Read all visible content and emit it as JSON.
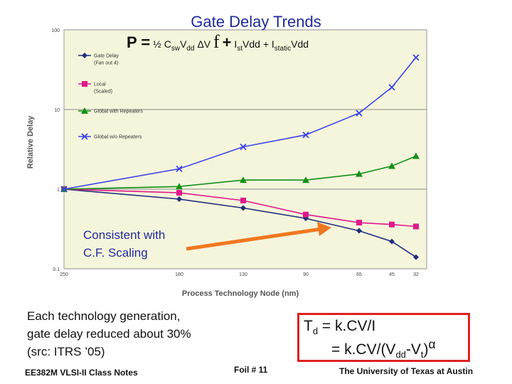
{
  "slide": {
    "title": "Gate Delay Trends",
    "power_eq": {
      "p": "P =",
      "half": "½",
      "c": "C",
      "c_sub": "sw",
      "v": "V",
      "v_sub": "dd",
      "dv": "ΔV",
      "f": "f",
      "plus1": "+",
      "ist": "I",
      "ist_sub": "st",
      "ist_rest": "Vdd +",
      "istatic": "I",
      "istatic_sub": "static",
      "istatic_rest": "Vdd"
    },
    "consistent_note": [
      "Consistent with",
      "C.F. Scaling"
    ],
    "reduction_note": [
      "Each technology generation,",
      "gate delay reduced about 30%",
      "(src: ITRS ’05)"
    ],
    "td_eq": {
      "line1_a": "T",
      "line1_sub": "d",
      "line1_b": " = k.CV/I",
      "line2_a": "= k.CV/(V",
      "line2_sub1": "dd",
      "line2_b": "-V",
      "line2_sub2": "t",
      "line2_c": ")",
      "line2_sup": "α"
    },
    "footer_left": "EE382M VLSI-II Class Notes",
    "footer_mid": "Foil # 11",
    "footer_right": "The University of Texas at Austin"
  },
  "colors": {
    "title_blue": "#1f2a9a",
    "plot_bg": "#f5f5dc",
    "arrow": "#f07820",
    "box_red": "#e02020"
  },
  "chart_data": {
    "type": "line",
    "x": [
      "250",
      "180",
      "130",
      "90",
      "65",
      "45",
      "32"
    ],
    "xlabel": "Process Technology Node (nm)",
    "ylabel": "Relative Delay",
    "yscale": "log",
    "ylim": [
      0.1,
      100
    ],
    "yticks": [
      "100",
      "10",
      "1",
      "0.1"
    ],
    "grid": true,
    "legend_position": "top-left",
    "series": [
      {
        "name": "Gate Delay",
        "note": "(Fan out 4)",
        "color": "#1f2f7a",
        "marker": "diamond",
        "values": [
          1,
          0.75,
          0.58,
          0.43,
          0.3,
          0.22,
          0.14
        ]
      },
      {
        "name": "Local",
        "note": "(Scaled)",
        "color": "#e0188a",
        "marker": "square",
        "values": [
          1,
          0.9,
          0.72,
          0.48,
          0.38,
          0.36,
          0.34
        ]
      },
      {
        "name": "Global with Repeaters",
        "color": "#139018",
        "marker": "triangle",
        "values": [
          1,
          1.08,
          1.3,
          1.3,
          1.55,
          1.95,
          2.6
        ]
      },
      {
        "name": "Global w/o Repeaters",
        "color": "#3c44e6",
        "marker": "x",
        "values": [
          1,
          1.8,
          3.4,
          4.8,
          9.0,
          19.0,
          45.0
        ]
      }
    ]
  }
}
